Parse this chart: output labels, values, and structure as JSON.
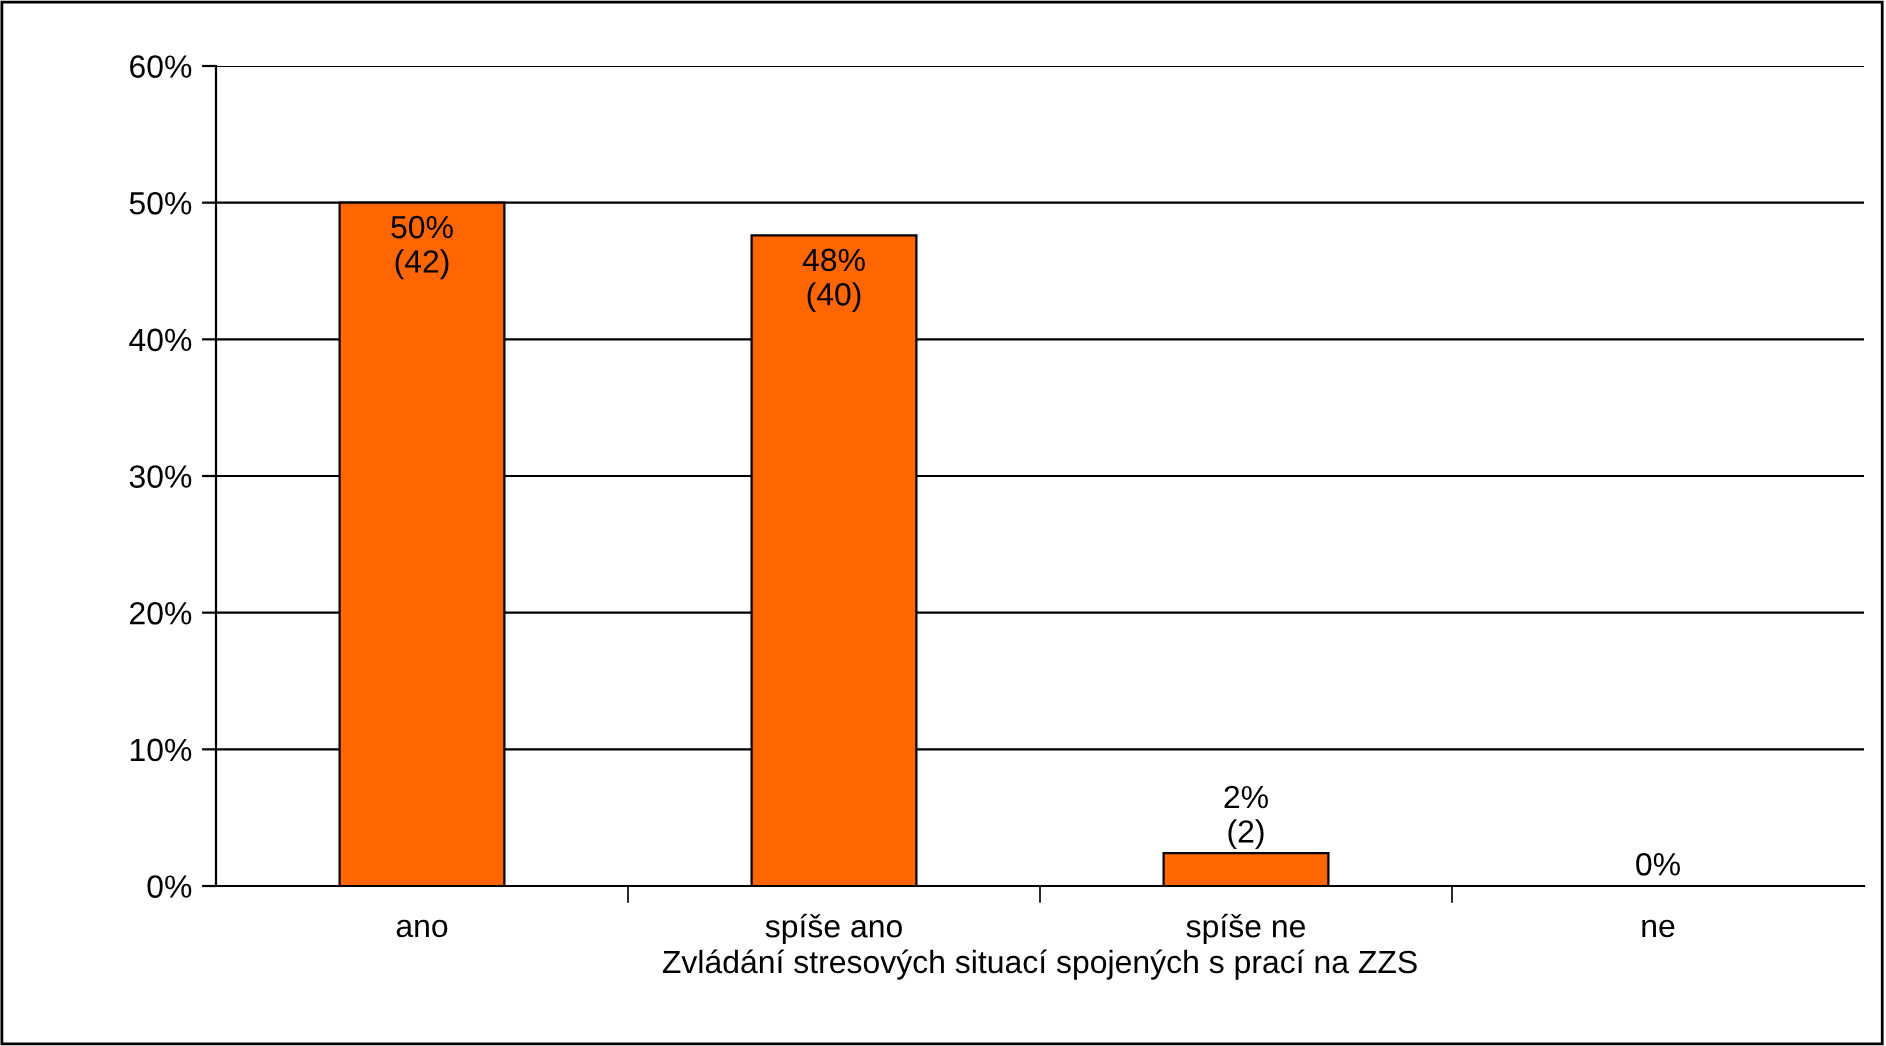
{
  "chart_data": {
    "type": "bar",
    "xlabel": "Zvládání stresových situací spojených s prací na ZZS",
    "categories": [
      "ano",
      "spíše ano",
      "spíše ne",
      "ne"
    ],
    "values": [
      50,
      47.6,
      2.4,
      0
    ],
    "value_labels": [
      "50%\n(42)",
      "48%\n(40)",
      "2%\n(2)",
      "0%"
    ],
    "color": "#ff6600",
    "ylim": [
      0,
      60
    ],
    "yticks": [
      {
        "value": 0,
        "label": "0%"
      },
      {
        "value": 10,
        "label": "10%"
      },
      {
        "value": 20,
        "label": "20%"
      },
      {
        "value": 30,
        "label": "30%"
      },
      {
        "value": 40,
        "label": "40%"
      },
      {
        "value": 50,
        "label": "50%"
      },
      {
        "value": 60,
        "label": "60%"
      }
    ],
    "grid": "y",
    "legend": false
  }
}
